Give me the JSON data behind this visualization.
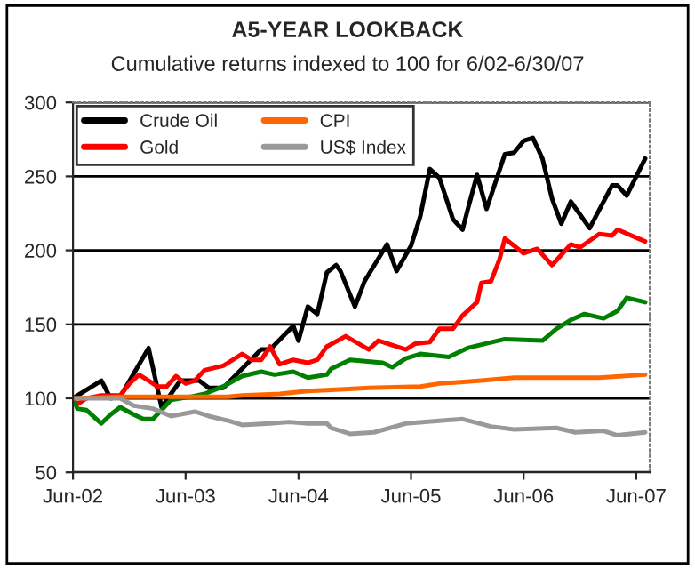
{
  "chart_data": {
    "type": "line",
    "title": "A5-YEAR LOOKBACK",
    "subtitle": "Cumulative returns indexed to 100 for 6/02-6/30/07",
    "xlim": [
      "2002-06-01",
      "2007-07-15"
    ],
    "ylim": [
      50,
      300
    ],
    "xticks": [
      {
        "value": "2002-06-01",
        "label": "Jun-02"
      },
      {
        "value": "2003-06-01",
        "label": "Jun-03"
      },
      {
        "value": "2004-06-01",
        "label": "Jun-04"
      },
      {
        "value": "2005-06-01",
        "label": "Jun-05"
      },
      {
        "value": "2006-06-01",
        "label": "Jun-06"
      },
      {
        "value": "2007-06-01",
        "label": "Jun-07"
      }
    ],
    "yticks": [
      50,
      100,
      150,
      200,
      250,
      300
    ],
    "grid": "y",
    "legend": "top left",
    "marker": "none",
    "line_style": "solid",
    "series": [
      {
        "name": "Crude Oil",
        "color": "#000000",
        "x": [
          "2002-06-01",
          "2002-09-01",
          "2002-10-01",
          "2002-11-01",
          "2003-02-01",
          "2003-03-15",
          "2003-05-15",
          "2003-07-15",
          "2003-08-15",
          "2003-10-01",
          "2003-12-01",
          "2004-02-01",
          "2004-03-01",
          "2004-05-15",
          "2004-06-01",
          "2004-07-01",
          "2004-08-01",
          "2004-09-01",
          "2004-10-01",
          "2004-10-15",
          "2004-12-01",
          "2005-01-01",
          "2005-03-15",
          "2005-04-15",
          "2005-06-01",
          "2005-07-01",
          "2005-08-01",
          "2005-09-01",
          "2005-10-15",
          "2005-11-15",
          "2005-12-01",
          "2006-01-01",
          "2006-02-01",
          "2006-04-01",
          "2006-05-01",
          "2006-06-01",
          "2006-07-01",
          "2006-08-01",
          "2006-09-01",
          "2006-10-01",
          "2006-11-01",
          "2007-01-01",
          "2007-03-15",
          "2007-04-01",
          "2007-05-01",
          "2007-06-30"
        ],
        "values": [
          100,
          112,
          100,
          101,
          134,
          94,
          112,
          112,
          107,
          107,
          120,
          133,
          133,
          149,
          139,
          162,
          157,
          185,
          190,
          186,
          162,
          179,
          204,
          186,
          203,
          223,
          255,
          249,
          221,
          214,
          227,
          251,
          228,
          265,
          266,
          274,
          276,
          262,
          235,
          218,
          233,
          215,
          244,
          244,
          237,
          262
        ]
      },
      {
        "name": "Gold",
        "color": "#ff0000",
        "x": [
          "2002-06-01",
          "2002-06-15",
          "2002-07-15",
          "2002-09-01",
          "2002-11-01",
          "2002-12-01",
          "2003-01-01",
          "2003-02-01",
          "2003-03-01",
          "2003-04-01",
          "2003-05-01",
          "2003-06-01",
          "2003-07-01",
          "2003-08-01",
          "2003-10-01",
          "2003-12-01",
          "2004-01-01",
          "2004-02-01",
          "2004-03-01",
          "2004-04-01",
          "2004-05-15",
          "2004-07-01",
          "2004-08-01",
          "2004-09-01",
          "2004-11-01",
          "2005-01-15",
          "2005-02-15",
          "2005-04-01",
          "2005-05-15",
          "2005-06-15",
          "2005-08-01",
          "2005-09-01",
          "2005-10-15",
          "2005-11-15",
          "2006-01-01",
          "2006-01-15",
          "2006-02-15",
          "2006-03-15",
          "2006-04-01",
          "2006-06-01",
          "2006-07-15",
          "2006-09-01",
          "2006-11-01",
          "2006-12-01",
          "2007-02-01",
          "2007-03-15",
          "2007-04-01",
          "2007-06-30"
        ],
        "values": [
          100,
          96,
          100,
          102,
          102,
          110,
          116,
          112,
          108,
          108,
          115,
          110,
          112,
          119,
          122,
          130,
          126,
          126,
          135,
          123,
          126,
          124,
          126,
          135,
          142,
          133,
          139,
          136,
          133,
          137,
          138,
          147,
          147,
          156,
          165,
          178,
          179,
          194,
          208,
          198,
          201,
          190,
          204,
          202,
          211,
          210,
          214,
          206
        ]
      },
      {
        "color": "#008000",
        "x": [
          "2002-06-01",
          "2002-06-15",
          "2002-07-15",
          "2002-09-01",
          "2002-10-01",
          "2002-11-01",
          "2002-12-15",
          "2003-01-15",
          "2003-02-15",
          "2003-03-15",
          "2003-04-15",
          "2003-06-15",
          "2003-08-01",
          "2003-10-01",
          "2003-12-01",
          "2004-02-01",
          "2004-03-15",
          "2004-05-15",
          "2004-07-01",
          "2004-09-01",
          "2004-09-15",
          "2004-11-15",
          "2005-03-01",
          "2005-04-01",
          "2005-05-15",
          "2005-07-01",
          "2005-10-01",
          "2005-12-01",
          "2006-04-01",
          "2006-08-01",
          "2006-09-15",
          "2006-11-01",
          "2006-12-15",
          "2007-02-15",
          "2007-04-01",
          "2007-05-01",
          "2007-06-30"
        ],
        "values": [
          100,
          93,
          92,
          83,
          89,
          94,
          89,
          86,
          86,
          92,
          99,
          101,
          103,
          108,
          115,
          118,
          116,
          118,
          114,
          116,
          120,
          126,
          124,
          121,
          127,
          130,
          128,
          134,
          140,
          139,
          147,
          153,
          157,
          154,
          159,
          168,
          165
        ]
      },
      {
        "name": "CPI",
        "color": "#ff6600",
        "x": [
          "2002-06-01",
          "2002-11-01",
          "2003-10-15",
          "2003-12-01",
          "2004-04-01",
          "2004-07-01",
          "2004-10-15",
          "2005-01-15",
          "2005-07-01",
          "2005-09-01",
          "2006-01-15",
          "2006-05-01",
          "2007-02-01",
          "2007-06-30"
        ],
        "values": [
          100,
          101,
          101,
          102,
          103,
          105,
          106,
          107,
          108,
          110,
          112,
          114,
          114,
          116
        ]
      },
      {
        "name": "US$ Index",
        "color": "#999999",
        "x": [
          "2002-06-01",
          "2002-11-01",
          "2002-12-15",
          "2003-02-15",
          "2003-04-15",
          "2003-07-01",
          "2003-08-15",
          "2003-10-15",
          "2003-12-01",
          "2004-03-01",
          "2004-05-01",
          "2004-07-01",
          "2004-09-01",
          "2004-09-15",
          "2004-11-15",
          "2005-02-01",
          "2005-05-15",
          "2005-11-15",
          "2006-02-15",
          "2006-05-01",
          "2006-09-15",
          "2006-11-15",
          "2007-02-15",
          "2007-04-01",
          "2007-06-30"
        ],
        "values": [
          100,
          100,
          95,
          93,
          88,
          91,
          88,
          85,
          82,
          83,
          84,
          83,
          83,
          80,
          76,
          77,
          83,
          86,
          81,
          79,
          80,
          77,
          78,
          75,
          77
        ]
      }
    ]
  }
}
